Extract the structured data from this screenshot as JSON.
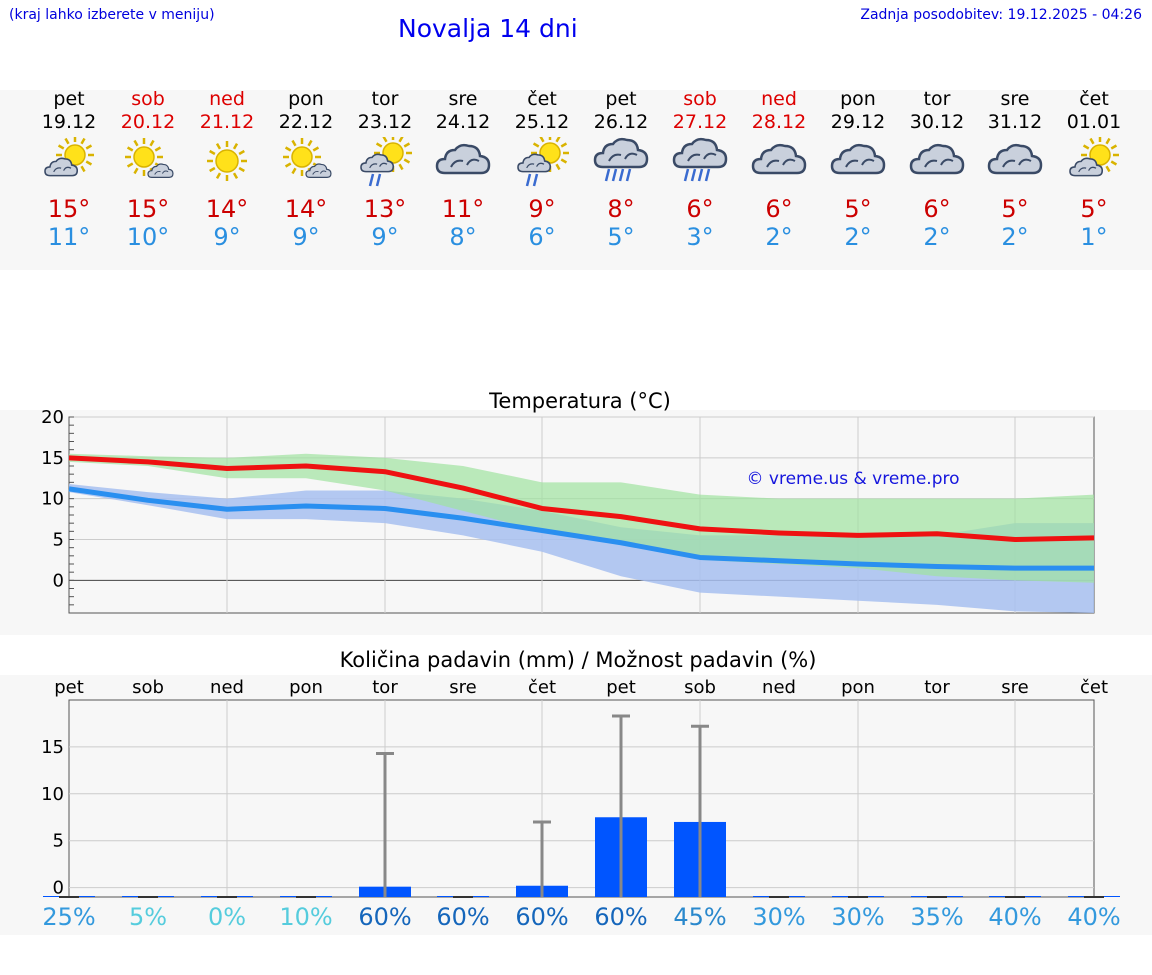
{
  "header": {
    "hint": "(kraj lahko izberete v meniju)",
    "title": "Novalja 14 dni",
    "updated": "Zadnja posodobitev: 19.12.2025 - 04:26"
  },
  "colors": {
    "max": "#cc0000",
    "min": "#2a8fe0",
    "weekend": "#dd0000",
    "max_line": "#ee1111",
    "min_line": "#2a8ff0",
    "max_band": "#9fe39f",
    "min_band": "#a7bff0",
    "bar": "#0055ff",
    "whisker": "#888888"
  },
  "days": [
    {
      "name": "pet",
      "date": "19.12",
      "weekend": false,
      "icon": "sun-cloud-icon",
      "max": "15°",
      "min": "11°"
    },
    {
      "name": "sob",
      "date": "20.12",
      "weekend": true,
      "icon": "sun-small-cloud-icon",
      "max": "15°",
      "min": "10°"
    },
    {
      "name": "ned",
      "date": "21.12",
      "weekend": true,
      "icon": "sun-icon",
      "max": "14°",
      "min": "9°"
    },
    {
      "name": "pon",
      "date": "22.12",
      "weekend": false,
      "icon": "sun-small-cloud-icon",
      "max": "14°",
      "min": "9°"
    },
    {
      "name": "tor",
      "date": "23.12",
      "weekend": false,
      "icon": "sun-cloud-rain-icon",
      "max": "13°",
      "min": "9°"
    },
    {
      "name": "sre",
      "date": "24.12",
      "weekend": false,
      "icon": "cloud-icon",
      "max": "11°",
      "min": "8°"
    },
    {
      "name": "čet",
      "date": "25.12",
      "weekend": false,
      "icon": "sun-cloud-rain-icon",
      "max": "9°",
      "min": "6°"
    },
    {
      "name": "pet",
      "date": "26.12",
      "weekend": false,
      "icon": "cloud-heavy-rain-icon",
      "max": "8°",
      "min": "5°"
    },
    {
      "name": "sob",
      "date": "27.12",
      "weekend": true,
      "icon": "cloud-heavy-rain-icon",
      "max": "6°",
      "min": "3°"
    },
    {
      "name": "ned",
      "date": "28.12",
      "weekend": true,
      "icon": "cloud-icon",
      "max": "6°",
      "min": "2°"
    },
    {
      "name": "pon",
      "date": "29.12",
      "weekend": false,
      "icon": "cloud-icon",
      "max": "5°",
      "min": "2°"
    },
    {
      "name": "tor",
      "date": "30.12",
      "weekend": false,
      "icon": "cloud-icon",
      "max": "6°",
      "min": "2°"
    },
    {
      "name": "sre",
      "date": "31.12",
      "weekend": false,
      "icon": "cloud-icon",
      "max": "5°",
      "min": "2°"
    },
    {
      "name": "čet",
      "date": "01.01",
      "weekend": false,
      "icon": "sun-cloud-icon",
      "max": "5°",
      "min": "1°"
    }
  ],
  "chart_data": [
    {
      "type": "line",
      "title": "Temperatura (°C)",
      "watermark": "© vreme.us & vreme.pro",
      "ylim": [
        -4,
        20
      ],
      "yticks": [
        0,
        5,
        10,
        15,
        20
      ],
      "x": [
        0,
        1,
        2,
        3,
        4,
        5,
        6,
        7,
        8,
        9,
        10,
        11,
        12,
        13
      ],
      "series": [
        {
          "name": "max",
          "values": [
            15,
            14.5,
            13.7,
            14,
            13.3,
            11.3,
            8.8,
            7.8,
            6.3,
            5.8,
            5.5,
            5.7,
            5,
            5.2
          ],
          "band_low": [
            14.5,
            14,
            12.5,
            12.5,
            11,
            8.5,
            6,
            4.5,
            2.5,
            2,
            1.5,
            0.5,
            0,
            -0.3
          ],
          "band_high": [
            15.5,
            15.2,
            15,
            15.5,
            15,
            14,
            12,
            12,
            10.5,
            10,
            10,
            10,
            10,
            10.5
          ]
        },
        {
          "name": "min",
          "values": [
            11.2,
            9.8,
            8.7,
            9.1,
            8.8,
            7.6,
            6.1,
            4.6,
            2.8,
            2.4,
            2,
            1.7,
            1.5,
            1.5
          ],
          "band_low": [
            10.8,
            9.2,
            7.5,
            7.5,
            7,
            5.5,
            3.5,
            0.5,
            -1.5,
            -2,
            -2.5,
            -3,
            -3.8,
            -4
          ],
          "band_high": [
            11.8,
            10.8,
            10,
            11,
            11,
            10,
            8.5,
            6.5,
            5.5,
            5.5,
            5.5,
            5.5,
            7,
            7
          ]
        }
      ]
    },
    {
      "type": "bar",
      "title": "Količina padavin (mm) / Možnost padavin (%)",
      "categories": [
        "pet",
        "sob",
        "ned",
        "pon",
        "tor",
        "sre",
        "čet",
        "pet",
        "sob",
        "ned",
        "pon",
        "tor",
        "sre",
        "čet"
      ],
      "values": [
        0,
        0,
        0,
        0,
        0.1,
        0,
        0.2,
        7.5,
        7,
        0,
        0,
        0,
        0,
        0
      ],
      "error_high": [
        0,
        0,
        0,
        0,
        14.3,
        0,
        7,
        18.3,
        17.2,
        0,
        0,
        0,
        0,
        0
      ],
      "ylim": [
        -1,
        20
      ],
      "yticks": [
        0,
        5,
        10,
        15
      ],
      "probability": [
        "25%",
        "5%",
        "0%",
        "10%",
        "60%",
        "60%",
        "60%",
        "60%",
        "45%",
        "30%",
        "30%",
        "35%",
        "40%",
        "40%"
      ],
      "probability_colors": [
        "#3399dd",
        "#55ccdd",
        "#55ccdd",
        "#55ccdd",
        "#1566bb",
        "#1566bb",
        "#1566bb",
        "#1566bb",
        "#2a88cc",
        "#3399dd",
        "#3399dd",
        "#3399dd",
        "#3399dd",
        "#3399dd"
      ]
    }
  ]
}
